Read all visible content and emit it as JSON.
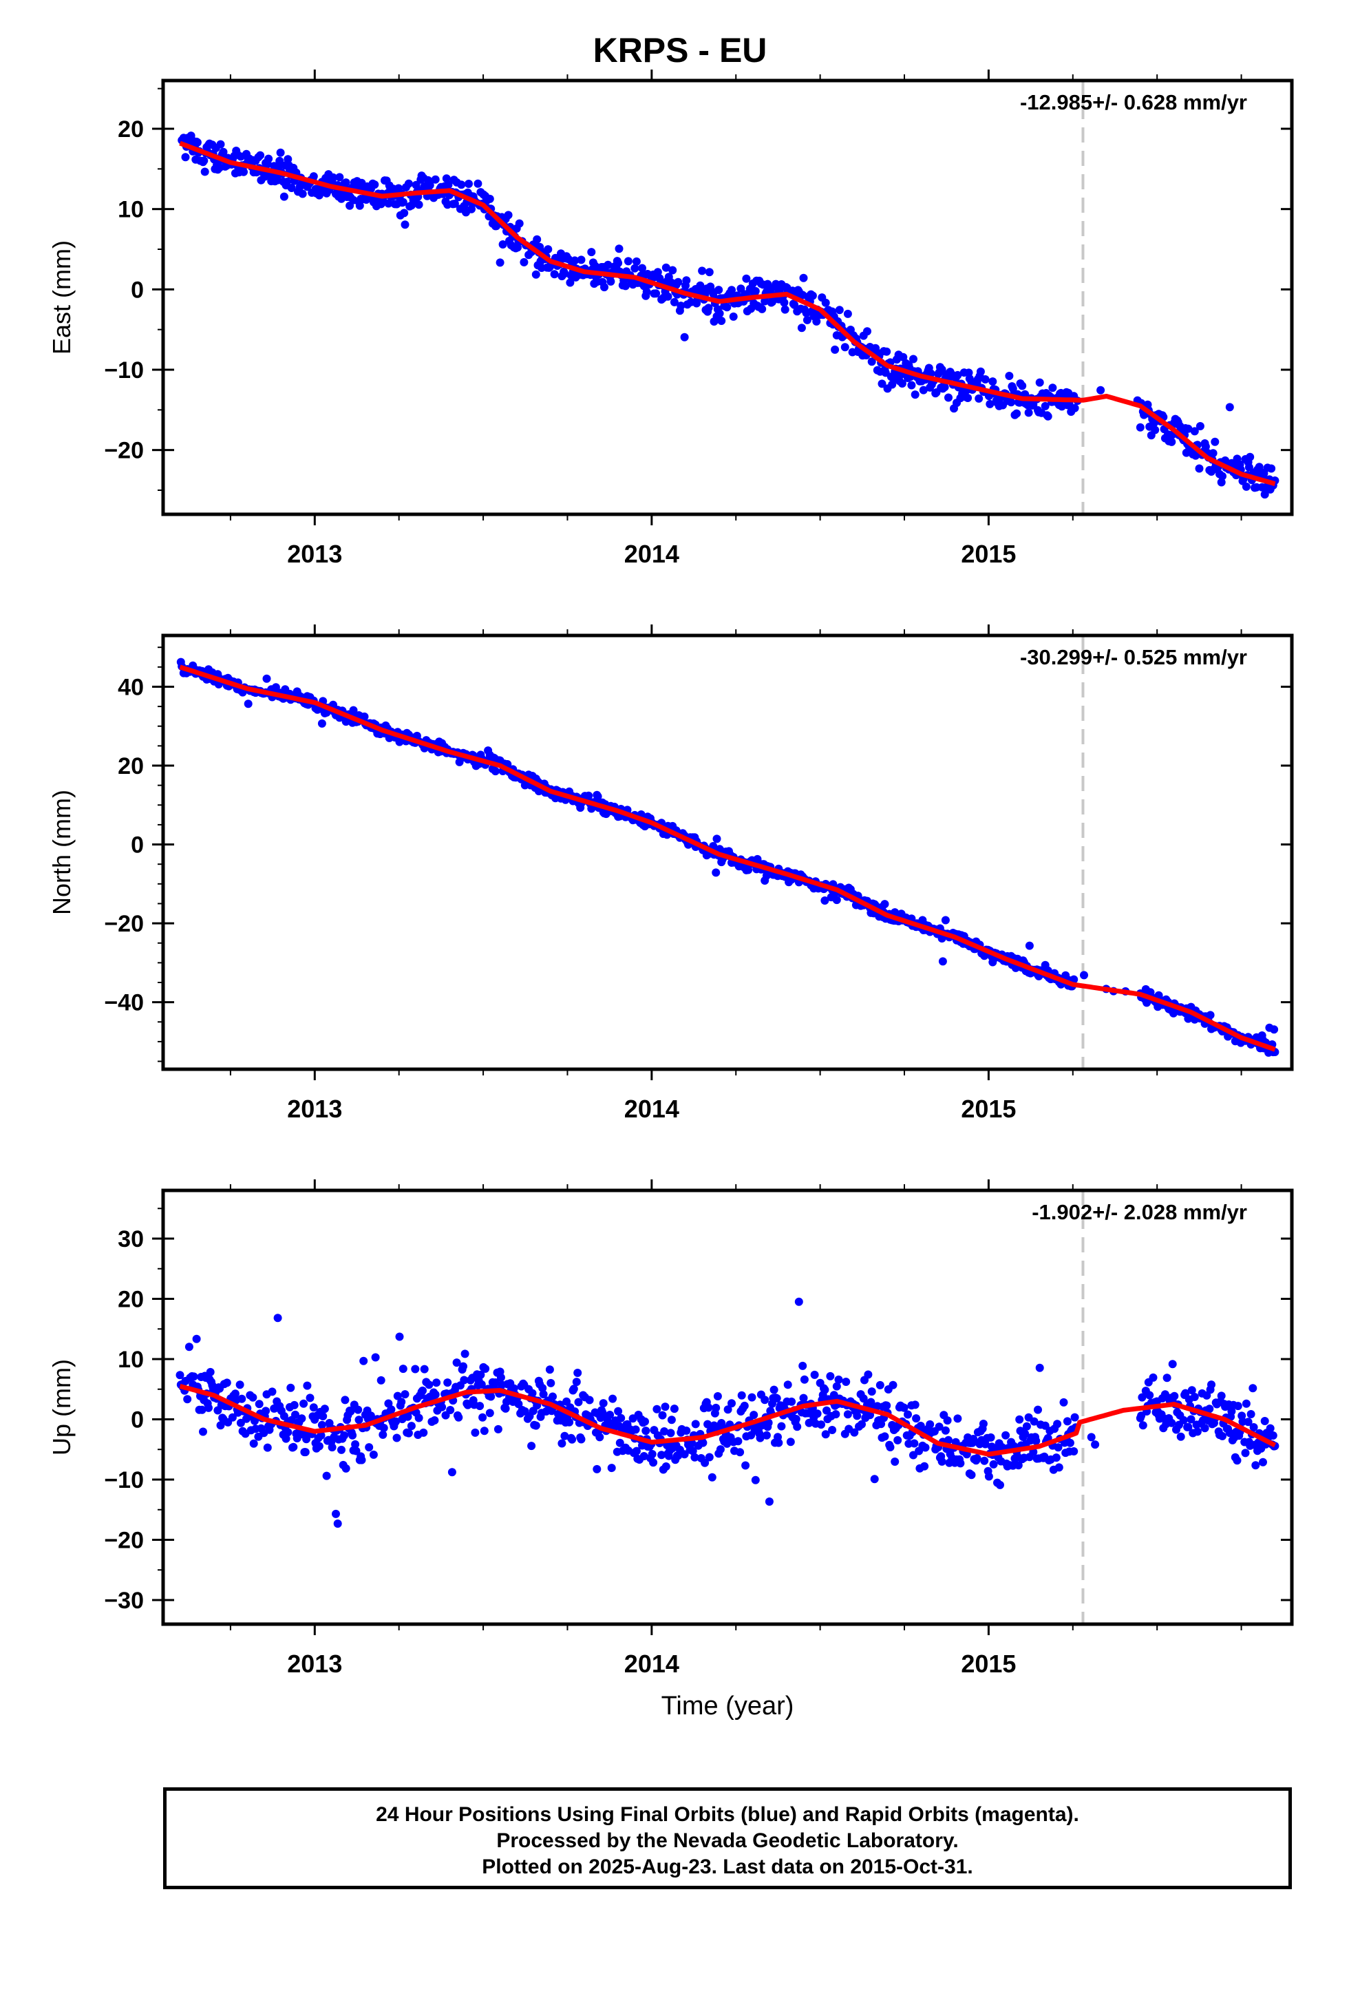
{
  "title": "KRPS - EU",
  "xlabel": "Time (year)",
  "footer": [
    "24 Hour Positions Using Final Orbits (blue) and Rapid Orbits (magenta).",
    "Processed by the Nevada Geodetic Laboratory.",
    "Plotted on 2025-Aug-23. Last data on 2015-Oct-31."
  ],
  "colors": {
    "points": "#0000ff",
    "model": "#ff0000",
    "event_line": "#c8c8c8"
  },
  "chart_data": [
    {
      "type": "scatter",
      "ylabel": "East (mm)",
      "rate_annotation": "-12.985+/- 0.628 mm/yr",
      "xlim": [
        2012.55,
        2015.9
      ],
      "ylim": [
        -28,
        26
      ],
      "x_ticks": [
        "2013",
        "2014",
        "2015"
      ],
      "y_ticks": [
        20,
        10,
        0,
        -10,
        -20
      ],
      "event_line_x": 2015.28,
      "data_gap": [
        2015.26,
        2015.45
      ],
      "model_line": [
        [
          2012.6,
          18.2
        ],
        [
          2012.75,
          15.8
        ],
        [
          2012.9,
          14.5
        ],
        [
          2013.05,
          12.8
        ],
        [
          2013.2,
          11.6
        ],
        [
          2013.3,
          12.0
        ],
        [
          2013.4,
          12.3
        ],
        [
          2013.5,
          10.5
        ],
        [
          2013.6,
          6.5
        ],
        [
          2013.7,
          3.5
        ],
        [
          2013.8,
          2.2
        ],
        [
          2013.95,
          1.5
        ],
        [
          2014.1,
          -0.5
        ],
        [
          2014.2,
          -1.5
        ],
        [
          2014.3,
          -1.0
        ],
        [
          2014.4,
          -0.6
        ],
        [
          2014.5,
          -2.5
        ],
        [
          2014.6,
          -6.5
        ],
        [
          2014.7,
          -9.5
        ],
        [
          2014.8,
          -10.8
        ],
        [
          2014.95,
          -12.2
        ],
        [
          2015.1,
          -13.6
        ],
        [
          2015.28,
          -13.8
        ],
        [
          2015.35,
          -13.3
        ],
        [
          2015.45,
          -14.5
        ],
        [
          2015.55,
          -17.5
        ],
        [
          2015.65,
          -21.0
        ],
        [
          2015.75,
          -23.0
        ],
        [
          2015.85,
          -24.2
        ]
      ],
      "points": {
        "start": 2012.6,
        "end": 2015.85,
        "gap": [
          2015.26,
          2015.45
        ],
        "scatter_mm": 2.5
      }
    },
    {
      "type": "scatter",
      "ylabel": "North (mm)",
      "rate_annotation": "-30.299+/- 0.525 mm/yr",
      "xlim": [
        2012.55,
        2015.9
      ],
      "ylim": [
        -57,
        53
      ],
      "x_ticks": [
        "2013",
        "2014",
        "2015"
      ],
      "y_ticks": [
        40,
        20,
        0,
        -20,
        -40
      ],
      "event_line_x": 2015.28,
      "data_gap": [
        2015.26,
        2015.45
      ],
      "model_line": [
        [
          2012.6,
          45.0
        ],
        [
          2012.8,
          39.5
        ],
        [
          2013.0,
          36.0
        ],
        [
          2013.2,
          29.0
        ],
        [
          2013.4,
          23.5
        ],
        [
          2013.55,
          20.0
        ],
        [
          2013.7,
          13.5
        ],
        [
          2013.9,
          8.5
        ],
        [
          2014.0,
          5.5
        ],
        [
          2014.2,
          -2.5
        ],
        [
          2014.4,
          -7.5
        ],
        [
          2014.55,
          -11.5
        ],
        [
          2014.7,
          -18.0
        ],
        [
          2014.9,
          -23.5
        ],
        [
          2015.05,
          -29.0
        ],
        [
          2015.25,
          -35.5
        ],
        [
          2015.45,
          -38.0
        ],
        [
          2015.6,
          -42.5
        ],
        [
          2015.75,
          -49.0
        ],
        [
          2015.85,
          -52.0
        ]
      ],
      "points": {
        "start": 2012.6,
        "end": 2015.85,
        "gap": [
          2015.26,
          2015.45
        ],
        "scatter_mm": 1.8
      }
    },
    {
      "type": "scatter",
      "ylabel": "Up (mm)",
      "rate_annotation": "-1.902+/- 2.028 mm/yr",
      "xlim": [
        2012.55,
        2015.9
      ],
      "ylim": [
        -34,
        38
      ],
      "x_ticks": [
        "2013",
        "2014",
        "2015"
      ],
      "y_ticks": [
        30,
        20,
        10,
        0,
        -10,
        -20,
        -30
      ],
      "event_line_x": 2015.28,
      "data_gap": [
        2015.26,
        2015.45
      ],
      "model_line": [
        [
          2012.6,
          5.5
        ],
        [
          2012.7,
          4.0
        ],
        [
          2012.85,
          0.0
        ],
        [
          2013.0,
          -2.0
        ],
        [
          2013.15,
          -1.0
        ],
        [
          2013.3,
          2.0
        ],
        [
          2013.45,
          4.5
        ],
        [
          2013.55,
          4.8
        ],
        [
          2013.7,
          2.5
        ],
        [
          2013.85,
          -1.5
        ],
        [
          2014.0,
          -3.8
        ],
        [
          2014.15,
          -3.0
        ],
        [
          2014.3,
          -0.5
        ],
        [
          2014.45,
          2.2
        ],
        [
          2014.55,
          3.0
        ],
        [
          2014.7,
          0.8
        ],
        [
          2014.85,
          -4.0
        ],
        [
          2015.0,
          -5.8
        ],
        [
          2015.15,
          -4.5
        ],
        [
          2015.26,
          -2.3
        ],
        [
          2015.27,
          -0.5
        ],
        [
          2015.4,
          1.5
        ],
        [
          2015.55,
          2.5
        ],
        [
          2015.7,
          0.0
        ],
        [
          2015.85,
          -4.3
        ]
      ],
      "points": {
        "start": 2012.6,
        "end": 2015.85,
        "gap": [
          2015.26,
          2015.45
        ],
        "scatter_mm": 6.0
      }
    }
  ]
}
